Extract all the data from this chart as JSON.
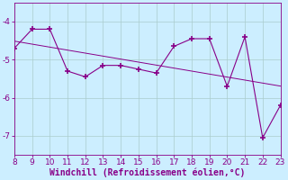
{
  "x": [
    8,
    9,
    10,
    11,
    12,
    13,
    14,
    15,
    16,
    17,
    18,
    19,
    20,
    21,
    22,
    23
  ],
  "y": [
    -4.7,
    -4.2,
    -4.2,
    -5.3,
    -5.45,
    -5.15,
    -5.15,
    -5.25,
    -5.35,
    -4.65,
    -4.45,
    -4.45,
    -5.7,
    -4.4,
    -7.05,
    -6.2
  ],
  "line_color": "#880088",
  "marker": "+",
  "marker_size": 4,
  "marker_lw": 1.2,
  "line_width": 0.8,
  "regression_color": "#880088",
  "regression_lw": 0.7,
  "bg_color": "#cceeff",
  "grid_color": "#aacccc",
  "xlabel": "Windchill (Refroidissement éolien,°C)",
  "xlabel_color": "#880088",
  "tick_color": "#880088",
  "spine_color": "#880088",
  "xlim": [
    8,
    23
  ],
  "ylim": [
    -7.5,
    -3.5
  ],
  "yticks": [
    -7,
    -6,
    -5,
    -4
  ],
  "xticks": [
    8,
    9,
    10,
    11,
    12,
    13,
    14,
    15,
    16,
    17,
    18,
    19,
    20,
    21,
    22,
    23
  ],
  "tick_fontsize": 6.5,
  "xlabel_fontsize": 7
}
